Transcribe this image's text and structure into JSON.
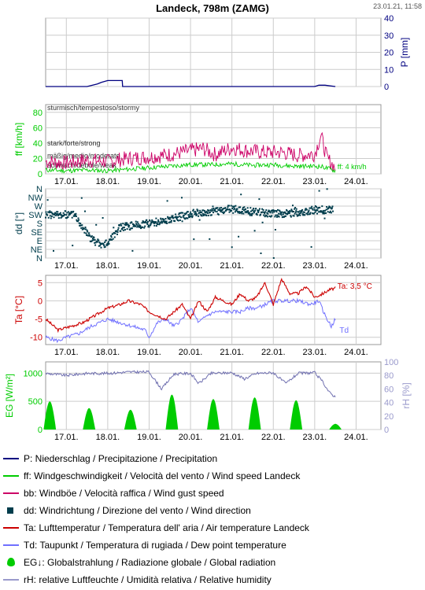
{
  "header": {
    "title": "Landeck, 798m (ZAMG)",
    "timestamp": "23.01.21, 11:58"
  },
  "days": [
    "17.01.",
    "18.01.",
    "19.01.",
    "20.01.",
    "21.01.",
    "22.01.",
    "23.01.",
    "24.01."
  ],
  "colors": {
    "precip": "#000080",
    "wind": "#00cc00",
    "gust": "#cc0066",
    "dir": "#003d4c",
    "temp": "#cc0000",
    "dew": "#7070ff",
    "rad": "#00cc00",
    "rh": "#7070b0",
    "grid": "#cccccc"
  },
  "chart_data": [
    {
      "type": "line",
      "name": "precipitation",
      "ylabel": "P [mm]",
      "ylim": [
        0,
        40
      ],
      "yticks": [
        "0",
        "10",
        "20",
        "30",
        "40"
      ],
      "series": [
        {
          "name": "P",
          "x": [
            16.5,
            17.5,
            17.75,
            17.85,
            18.0,
            18.35,
            18.36,
            23.0,
            23.1,
            23.25,
            23.5
          ],
          "values": [
            0,
            0,
            1.5,
            2.5,
            3.5,
            3.5,
            0,
            0,
            0.8,
            0.8,
            0
          ]
        }
      ]
    },
    {
      "type": "line",
      "name": "wind",
      "ylabel": "ff [km/h]",
      "ylim": [
        0,
        90
      ],
      "yticks": [
        "0",
        "20",
        "40",
        "60",
        "80"
      ],
      "annotations": [
        "sturmisch/tempestoso/stormy",
        "stark/forte/strong",
        "mäßig/medio/moderate",
        "schwach/debole/weak"
      ],
      "end_label": "ff: 4 km/h",
      "series": [
        {
          "name": "bb",
          "x": [
            16.5,
            17.0,
            17.5,
            18.0,
            18.5,
            19.0,
            19.5,
            20.0,
            20.3,
            20.6,
            21.0,
            21.4,
            21.8,
            22.2,
            22.6,
            23.0,
            23.15,
            23.3,
            23.5
          ],
          "values": [
            16,
            14,
            18,
            16,
            20,
            22,
            25,
            30,
            33,
            25,
            34,
            30,
            28,
            28,
            24,
            26,
            50,
            20,
            8
          ]
        },
        {
          "name": "ff",
          "x": [
            16.5,
            17.0,
            17.5,
            18.0,
            18.5,
            19.0,
            19.5,
            20.0,
            20.5,
            21.0,
            21.5,
            22.0,
            22.5,
            23.0,
            23.2,
            23.5
          ],
          "values": [
            5,
            4,
            5,
            4,
            6,
            8,
            10,
            12,
            12,
            13,
            11,
            12,
            10,
            10,
            9,
            4
          ]
        }
      ]
    },
    {
      "type": "scatter",
      "name": "direction",
      "ylabel": "dd [°]",
      "yticks": [
        "N",
        "NE",
        "E",
        "SE",
        "S",
        "SW",
        "W",
        "NW",
        "N"
      ],
      "series": [
        {
          "name": "dd",
          "x": [
            16.5,
            17.2,
            17.6,
            17.9,
            18.3,
            19.0,
            19.5,
            20.0,
            20.5,
            21.0,
            21.5,
            22.0,
            22.5,
            23.0,
            23.45
          ],
          "values": [
            225,
            225,
            100,
            60,
            160,
            180,
            200,
            230,
            240,
            255,
            240,
            230,
            235,
            250,
            250
          ]
        }
      ]
    },
    {
      "type": "line",
      "name": "temperature",
      "ylabel": "Ta [°C]",
      "ylim": [
        -12,
        7
      ],
      "yticks": [
        "-10",
        "-5",
        "0",
        "5"
      ],
      "end_labels": [
        "Ta: 3,5 °C",
        "Td"
      ],
      "series": [
        {
          "name": "Ta",
          "x": [
            16.5,
            16.8,
            17.1,
            17.4,
            17.7,
            18.0,
            18.3,
            18.5,
            18.8,
            19.0,
            19.2,
            19.4,
            19.6,
            19.8,
            20.0,
            20.2,
            20.4,
            20.6,
            20.8,
            21.0,
            21.2,
            21.4,
            21.6,
            21.8,
            22.0,
            22.2,
            22.4,
            22.6,
            22.8,
            23.0,
            23.2,
            23.35,
            23.5
          ],
          "values": [
            -5,
            -8,
            -7,
            -6,
            -4,
            -2,
            -1,
            0,
            -1,
            -3,
            -4,
            -5,
            -3,
            -1,
            -5,
            0,
            -3,
            1,
            0,
            -1,
            2,
            0,
            1,
            5,
            -1,
            6,
            2,
            2,
            4,
            1,
            2,
            3,
            3.5
          ]
        },
        {
          "name": "Td",
          "x": [
            16.5,
            16.8,
            17.0,
            17.3,
            17.6,
            18.0,
            18.3,
            18.6,
            18.9,
            19.0,
            19.2,
            19.4,
            19.6,
            19.8,
            20.0,
            20.2,
            20.4,
            20.6,
            20.8,
            21.0,
            21.2,
            21.4,
            21.6,
            21.8,
            22.0,
            22.3,
            22.6,
            22.9,
            23.1,
            23.25,
            23.4,
            23.5
          ],
          "values": [
            -10,
            -11,
            -10,
            -9,
            -7,
            -5,
            -6,
            -7,
            -8,
            -10,
            -6,
            -5,
            -7,
            -5,
            -2,
            -6,
            -4,
            -3,
            -3,
            -3,
            -3,
            -2,
            -2,
            -1,
            0,
            0,
            0,
            -1,
            0,
            -4,
            -7,
            -5
          ]
        }
      ]
    },
    {
      "type": "area",
      "name": "radiation-humidity",
      "ylabel": "EG [W/m²]",
      "ylabel_right": "rH [%]",
      "ylim": [
        0,
        1200
      ],
      "ylim_right": [
        0,
        100
      ],
      "yticks": [
        "0",
        "500",
        "1000"
      ],
      "yticks_right": [
        "0",
        "20",
        "40",
        "60",
        "80",
        "100"
      ],
      "series": [
        {
          "name": "EG",
          "peaks_day": [
            16.6,
            17.55,
            18.55,
            19.55,
            20.55,
            21.55,
            22.55,
            23.5
          ],
          "values": [
            500,
            380,
            350,
            620,
            540,
            570,
            520,
            100
          ]
        },
        {
          "name": "rH",
          "x": [
            16.5,
            17.0,
            17.5,
            18.0,
            18.5,
            19.0,
            19.3,
            19.6,
            20.0,
            20.2,
            20.5,
            21.0,
            21.3,
            21.6,
            22.0,
            22.3,
            22.6,
            23.0,
            23.2,
            23.35,
            23.5
          ],
          "values": [
            83,
            80,
            83,
            83,
            85,
            85,
            60,
            82,
            83,
            68,
            83,
            84,
            75,
            83,
            84,
            68,
            83,
            84,
            70,
            55,
            48
          ]
        }
      ]
    }
  ],
  "legend": [
    {
      "kind": "line",
      "color": "#000080",
      "label": "P: Niederschlag / Precipitazione / Precipitation"
    },
    {
      "kind": "line",
      "color": "#00cc00",
      "label": "ff: Windgeschwindigkeit / Velocità del vento / Wind speed  Landeck"
    },
    {
      "kind": "line",
      "color": "#cc0066",
      "label": "bb: Windböe / Velocità raffica / Wind gust speed"
    },
    {
      "kind": "square",
      "color": "#003d4c",
      "label": "dd: Windrichtung / Direzione del vento / Wind direction"
    },
    {
      "kind": "line",
      "color": "#cc0000",
      "label": "Ta: Lufttemperatur / Temperatura dell' aria / Air temperature  Landeck"
    },
    {
      "kind": "line",
      "color": "#7070ff",
      "label": "Td: Taupunkt / Temperatura di rugiada / Dew point temperature"
    },
    {
      "kind": "drop",
      "color": "#00cc00",
      "label": "EG↓: Globalstrahlung / Radiazione globale / Global radiation"
    },
    {
      "kind": "line",
      "color": "#9a9acc",
      "label": "rH: relative Luftfeuchte / Umidità relativa / Relative humidity"
    }
  ]
}
